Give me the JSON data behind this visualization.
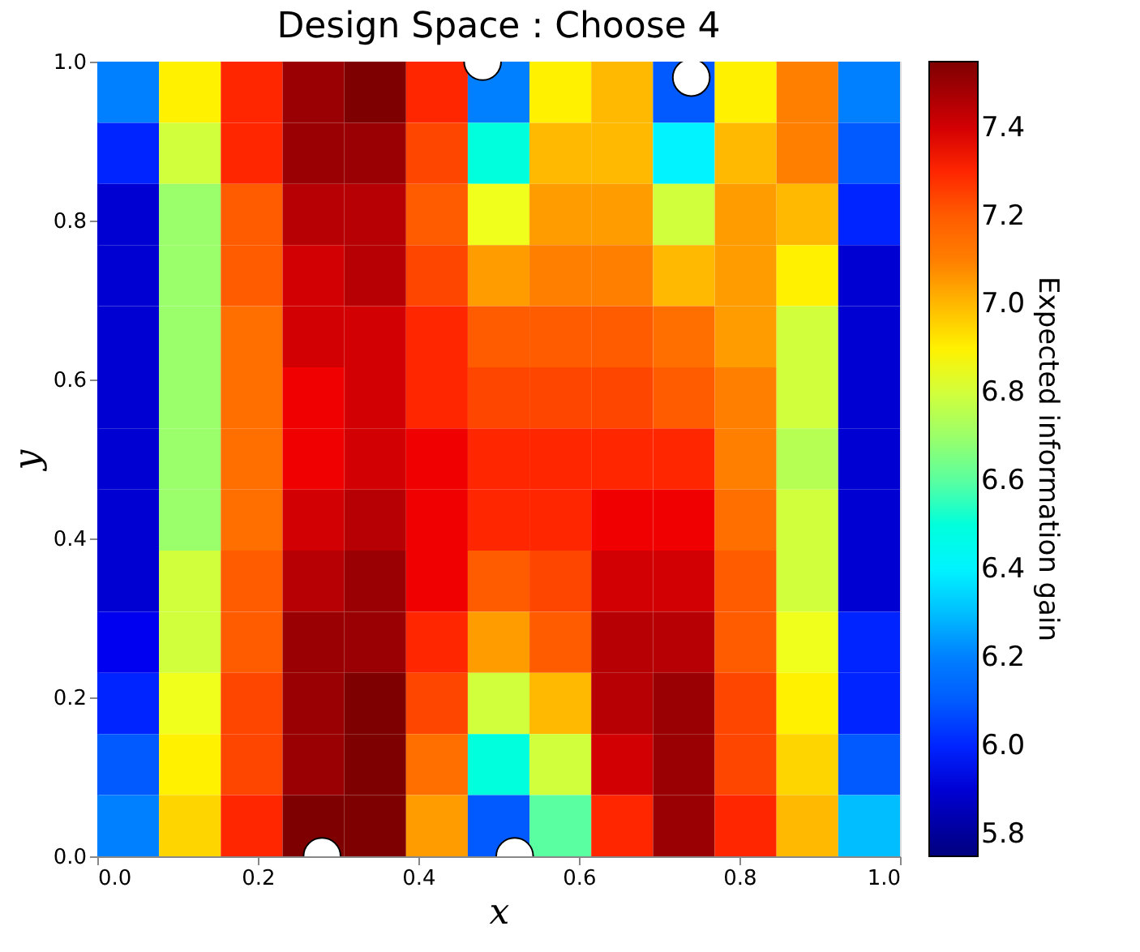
{
  "chart_data": {
    "type": "heatmap",
    "title": "Design Space : Choose 4",
    "xlabel": "x",
    "ylabel": "y",
    "clabel": "Expected information gain",
    "x": [
      0.0385,
      0.1154,
      0.1923,
      0.2692,
      0.3462,
      0.4231,
      0.5,
      0.5769,
      0.6538,
      0.7308,
      0.8077,
      0.8846,
      0.9615
    ],
    "y": [
      0.9615,
      0.8846,
      0.8077,
      0.7308,
      0.6538,
      0.5769,
      0.5,
      0.4231,
      0.3462,
      0.2692,
      0.1923,
      0.1154,
      0.0385
    ],
    "cells": [
      [
        6.2,
        6.9,
        7.3,
        7.5,
        7.55,
        7.3,
        6.2,
        6.9,
        7.0,
        6.1,
        6.9,
        7.1,
        6.2
      ],
      [
        6.0,
        6.8,
        7.3,
        7.5,
        7.5,
        7.25,
        6.5,
        7.0,
        7.0,
        6.4,
        7.0,
        7.1,
        6.1
      ],
      [
        5.9,
        6.7,
        7.2,
        7.45,
        7.45,
        7.2,
        6.85,
        7.05,
        7.05,
        6.8,
        7.05,
        7.0,
        6.0
      ],
      [
        5.9,
        6.7,
        7.2,
        7.4,
        7.45,
        7.25,
        7.05,
        7.1,
        7.1,
        7.0,
        7.05,
        6.9,
        5.9
      ],
      [
        5.9,
        6.7,
        7.15,
        7.4,
        7.4,
        7.3,
        7.2,
        7.2,
        7.2,
        7.15,
        7.05,
        6.8,
        5.9
      ],
      [
        5.9,
        6.7,
        7.15,
        7.35,
        7.4,
        7.3,
        7.25,
        7.25,
        7.25,
        7.2,
        7.1,
        6.8,
        5.9
      ],
      [
        5.9,
        6.7,
        7.15,
        7.35,
        7.4,
        7.35,
        7.3,
        7.3,
        7.3,
        7.3,
        7.1,
        6.75,
        5.9
      ],
      [
        5.9,
        6.7,
        7.15,
        7.4,
        7.45,
        7.35,
        7.3,
        7.3,
        7.35,
        7.35,
        7.15,
        6.8,
        5.9
      ],
      [
        5.9,
        6.8,
        7.2,
        7.45,
        7.5,
        7.35,
        7.2,
        7.25,
        7.4,
        7.4,
        7.2,
        6.8,
        5.9
      ],
      [
        5.95,
        6.8,
        7.2,
        7.5,
        7.5,
        7.3,
        7.05,
        7.2,
        7.45,
        7.45,
        7.2,
        6.85,
        6.0
      ],
      [
        6.0,
        6.85,
        7.25,
        7.5,
        7.55,
        7.25,
        6.8,
        7.0,
        7.45,
        7.5,
        7.25,
        6.9,
        6.0
      ],
      [
        6.1,
        6.9,
        7.25,
        7.5,
        7.55,
        7.15,
        6.5,
        6.8,
        7.4,
        7.5,
        7.25,
        6.95,
        6.1
      ],
      [
        6.2,
        6.95,
        7.3,
        7.55,
        7.55,
        7.05,
        6.1,
        6.6,
        7.3,
        7.5,
        7.3,
        7.0,
        6.3
      ]
    ],
    "series": [
      {
        "type": "scatter",
        "color": "#ffffff",
        "x": [
          0.28,
          0.52,
          0.48,
          0.74
        ],
        "values": [
          0.0,
          0.0,
          1.0,
          0.98
        ]
      }
    ],
    "marker": "circle",
    "xlim": [
      0,
      1
    ],
    "ylim": [
      0,
      1
    ],
    "xticks": [
      {
        "value": 0,
        "label": "0.0"
      },
      0.2,
      0.4,
      0.6,
      0.8,
      {
        "value": 1,
        "label": "1.0"
      }
    ],
    "yticks": [
      {
        "value": 0,
        "label": "0.0"
      },
      0.2,
      0.4,
      0.6,
      0.8,
      {
        "value": 1,
        "label": "1.0"
      }
    ],
    "clim": [
      5.75,
      7.55
    ],
    "cticks": [
      5.8,
      {
        "value": 6,
        "label": "6.0"
      },
      6.2,
      6.4,
      6.6,
      6.8,
      {
        "value": 7,
        "label": "7.0"
      },
      7.2,
      7.4
    ]
  }
}
